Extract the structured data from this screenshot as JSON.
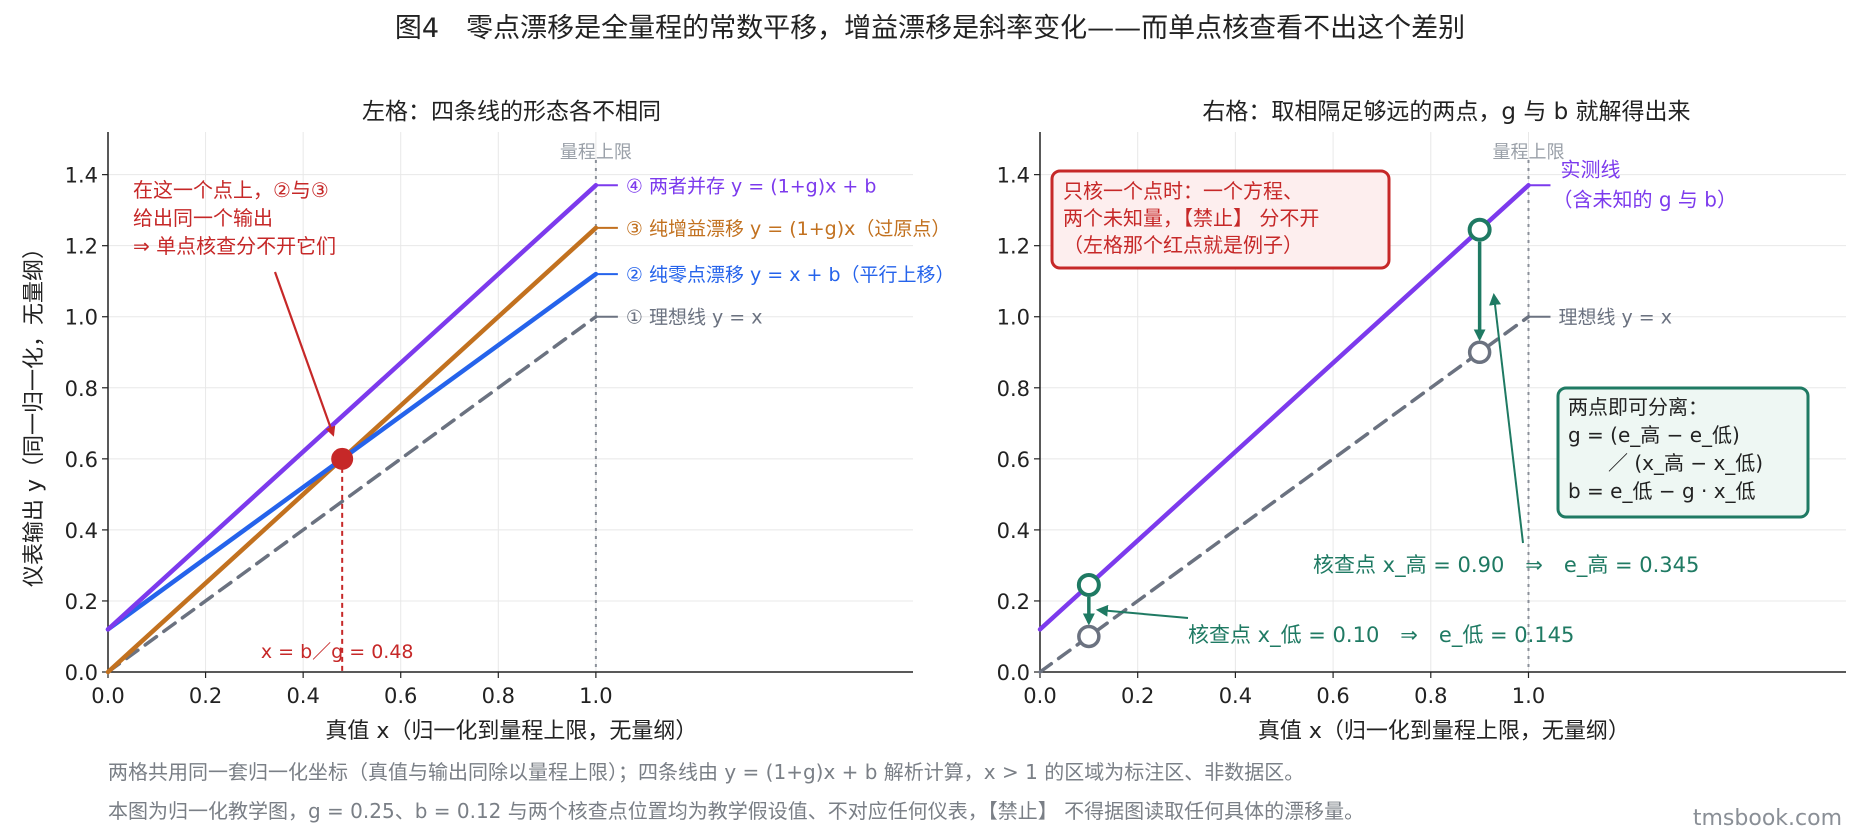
{
  "figure": {
    "title": "图4　零点漂移是全量程的常数平移，增益漂移是斜率变化——而单点核查看不出这个差别",
    "footnote_1": "两格共用同一套归一化坐标（真值与输出同除以量程上限）；四条线由 y = (1+g)x + b 解析计算，x > 1 的区域为标注区、非数据区。",
    "footnote_2": "本图为归一化教学图，g = 0.25、b = 0.12 与两个核查点位置均为教学假设值、不对应任何仪表，【禁止】 不得据图读取任何具体的漂移量。",
    "brand": "tmsbook.com"
  },
  "chart_data": [
    {
      "type": "line",
      "title": "左格：四条线的形态各不相同",
      "xlabel": "真值 x（归一化到量程上限，无量纲）",
      "ylabel": "仪表输出 y（同一归一化，无量纲）",
      "xlim": [
        0,
        1.65
      ],
      "ylim": [
        0,
        1.52
      ],
      "xticks": [
        "0.0",
        "0.2",
        "0.4",
        "0.6",
        "0.8",
        "1.0"
      ],
      "yticks": [
        "0.0",
        "0.2",
        "0.4",
        "0.6",
        "0.8",
        "1.0",
        "1.2",
        "1.4"
      ],
      "grid": true,
      "range_limit": {
        "x": 1.0,
        "label": "量程上限"
      },
      "series": [
        {
          "name": "① 理想线 y = x",
          "color": "#6b7280",
          "dash": true,
          "x": [
            0,
            1
          ],
          "y": [
            0,
            1
          ]
        },
        {
          "name": "② 纯零点漂移 y = x + b（平行上移）",
          "color": "#2563eb",
          "x": [
            0,
            1
          ],
          "y": [
            0.12,
            1.12
          ]
        },
        {
          "name": "③ 纯增益漂移 y = (1+g)x（过原点）",
          "color": "#c2711f",
          "x": [
            0,
            1
          ],
          "y": [
            0,
            1.25
          ]
        },
        {
          "name": "④ 两者并存 y = (1+g)x + b",
          "color": "#7c3aed",
          "x": [
            0,
            1
          ],
          "y": [
            0.12,
            1.37
          ]
        }
      ],
      "highlight_point": {
        "x": 0.48,
        "y": 0.6,
        "color": "#c62828",
        "label": "x = b／g = 0.48"
      },
      "annotation": {
        "lines": [
          "在这一个点上，②与③",
          "给出同一个输出",
          "⇒ 单点核查分不开它们"
        ],
        "color": "#c62828"
      }
    },
    {
      "type": "line",
      "title": "右格：取相隔足够远的两点，g 与 b 就解得出来",
      "xlabel": "真值 x（归一化到量程上限，无量纲）",
      "xlim": [
        0,
        1.65
      ],
      "ylim": [
        0,
        1.52
      ],
      "xticks": [
        "0.0",
        "0.2",
        "0.4",
        "0.6",
        "0.8",
        "1.0"
      ],
      "yticks": [
        "0.0",
        "0.2",
        "0.4",
        "0.6",
        "0.8",
        "1.0",
        "1.2",
        "1.4"
      ],
      "grid": true,
      "range_limit": {
        "x": 1.0,
        "label": "量程上限"
      },
      "series": [
        {
          "name": "理想线 y = x",
          "color": "#6b7280",
          "dash": true,
          "x": [
            0,
            1
          ],
          "y": [
            0,
            1
          ]
        },
        {
          "name": "实测线",
          "name_line2": "（含未知的 g 与 b）",
          "color": "#7c3aed",
          "x": [
            0,
            1
          ],
          "y": [
            0.12,
            1.37
          ]
        }
      ],
      "check_points": [
        {
          "x": 0.1,
          "ideal": 0.1,
          "measured": 0.245,
          "label": "核查点 x_低 = 0.10　⇒　e_低 = 0.145"
        },
        {
          "x": 0.9,
          "ideal": 0.9,
          "measured": 1.245,
          "label": "核查点 x_高 = 0.90　⇒　e_高 = 0.345"
        }
      ],
      "red_box": [
        "只核一个点时：一个方程、",
        "两个未知量，【禁止】 分不开",
        "（左格那个红点就是例子）"
      ],
      "green_box": [
        "两点即可分离：",
        "g = (e_高 − e_低)",
        "　　／ (x_高 − x_低)",
        "b = e_低 − g · x_低"
      ]
    }
  ]
}
